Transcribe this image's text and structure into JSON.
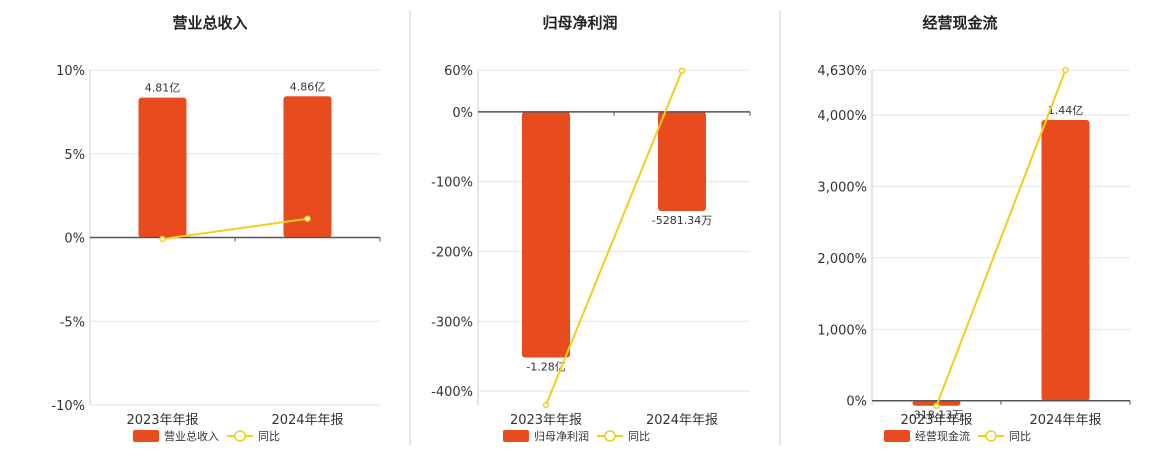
{
  "colors": {
    "bar": "#e84c1e",
    "line": "#f2cf1d",
    "axis": "#555555",
    "grid": "#e6e6e6",
    "divider": "#cccccc"
  },
  "chart_data": [
    {
      "type": "bar",
      "title": "营业总收入",
      "categories": [
        "2023年年报",
        "2024年年报"
      ],
      "bar_series_name": "营业总收入",
      "line_series_name": "同比",
      "bar_values": [
        0.0835,
        0.0843
      ],
      "bar_labels": [
        "4.81亿",
        "4.86亿"
      ],
      "line_values": [
        -0.0009,
        0.0112
      ],
      "ylim": [
        -0.1,
        0.1
      ],
      "yticks": [
        0.1,
        0.05,
        0.0,
        -0.05,
        -0.1
      ],
      "ytick_labels": [
        "10%",
        "5%",
        "0%",
        "-5%",
        "-10%"
      ]
    },
    {
      "type": "bar",
      "title": "归母净利润",
      "categories": [
        "2023年年报",
        "2024年年报"
      ],
      "bar_series_name": "归母净利润",
      "line_series_name": "同比",
      "bar_values": [
        -3.52,
        -1.42
      ],
      "bar_labels": [
        "-1.28亿",
        "-5281.34万"
      ],
      "line_values": [
        -4.2,
        0.59
      ],
      "ylim": [
        -4.2,
        0.6
      ],
      "yticks": [
        0.6,
        0.0,
        -1.0,
        -2.0,
        -3.0,
        -4.0
      ],
      "ytick_labels": [
        "60%",
        "0%",
        "-100%",
        "-200%",
        "-300%",
        "-400%"
      ]
    },
    {
      "type": "bar",
      "title": "经营现金流",
      "categories": [
        "2023年年报",
        "2024年年报"
      ],
      "bar_series_name": "经营现金流",
      "line_series_name": "同比",
      "bar_values": [
        -0.7,
        39.3
      ],
      "bar_labels": [
        "-318.13万",
        "1.44亿"
      ],
      "line_values": [
        -0.7,
        46.3
      ],
      "ylim": [
        -0.6,
        46.3
      ],
      "yticks": [
        46.3,
        40.0,
        30.0,
        20.0,
        10.0,
        0.0
      ],
      "ytick_labels": [
        "4,630%",
        "4,000%",
        "3,000%",
        "2,000%",
        "1,000%",
        "0%"
      ]
    }
  ]
}
